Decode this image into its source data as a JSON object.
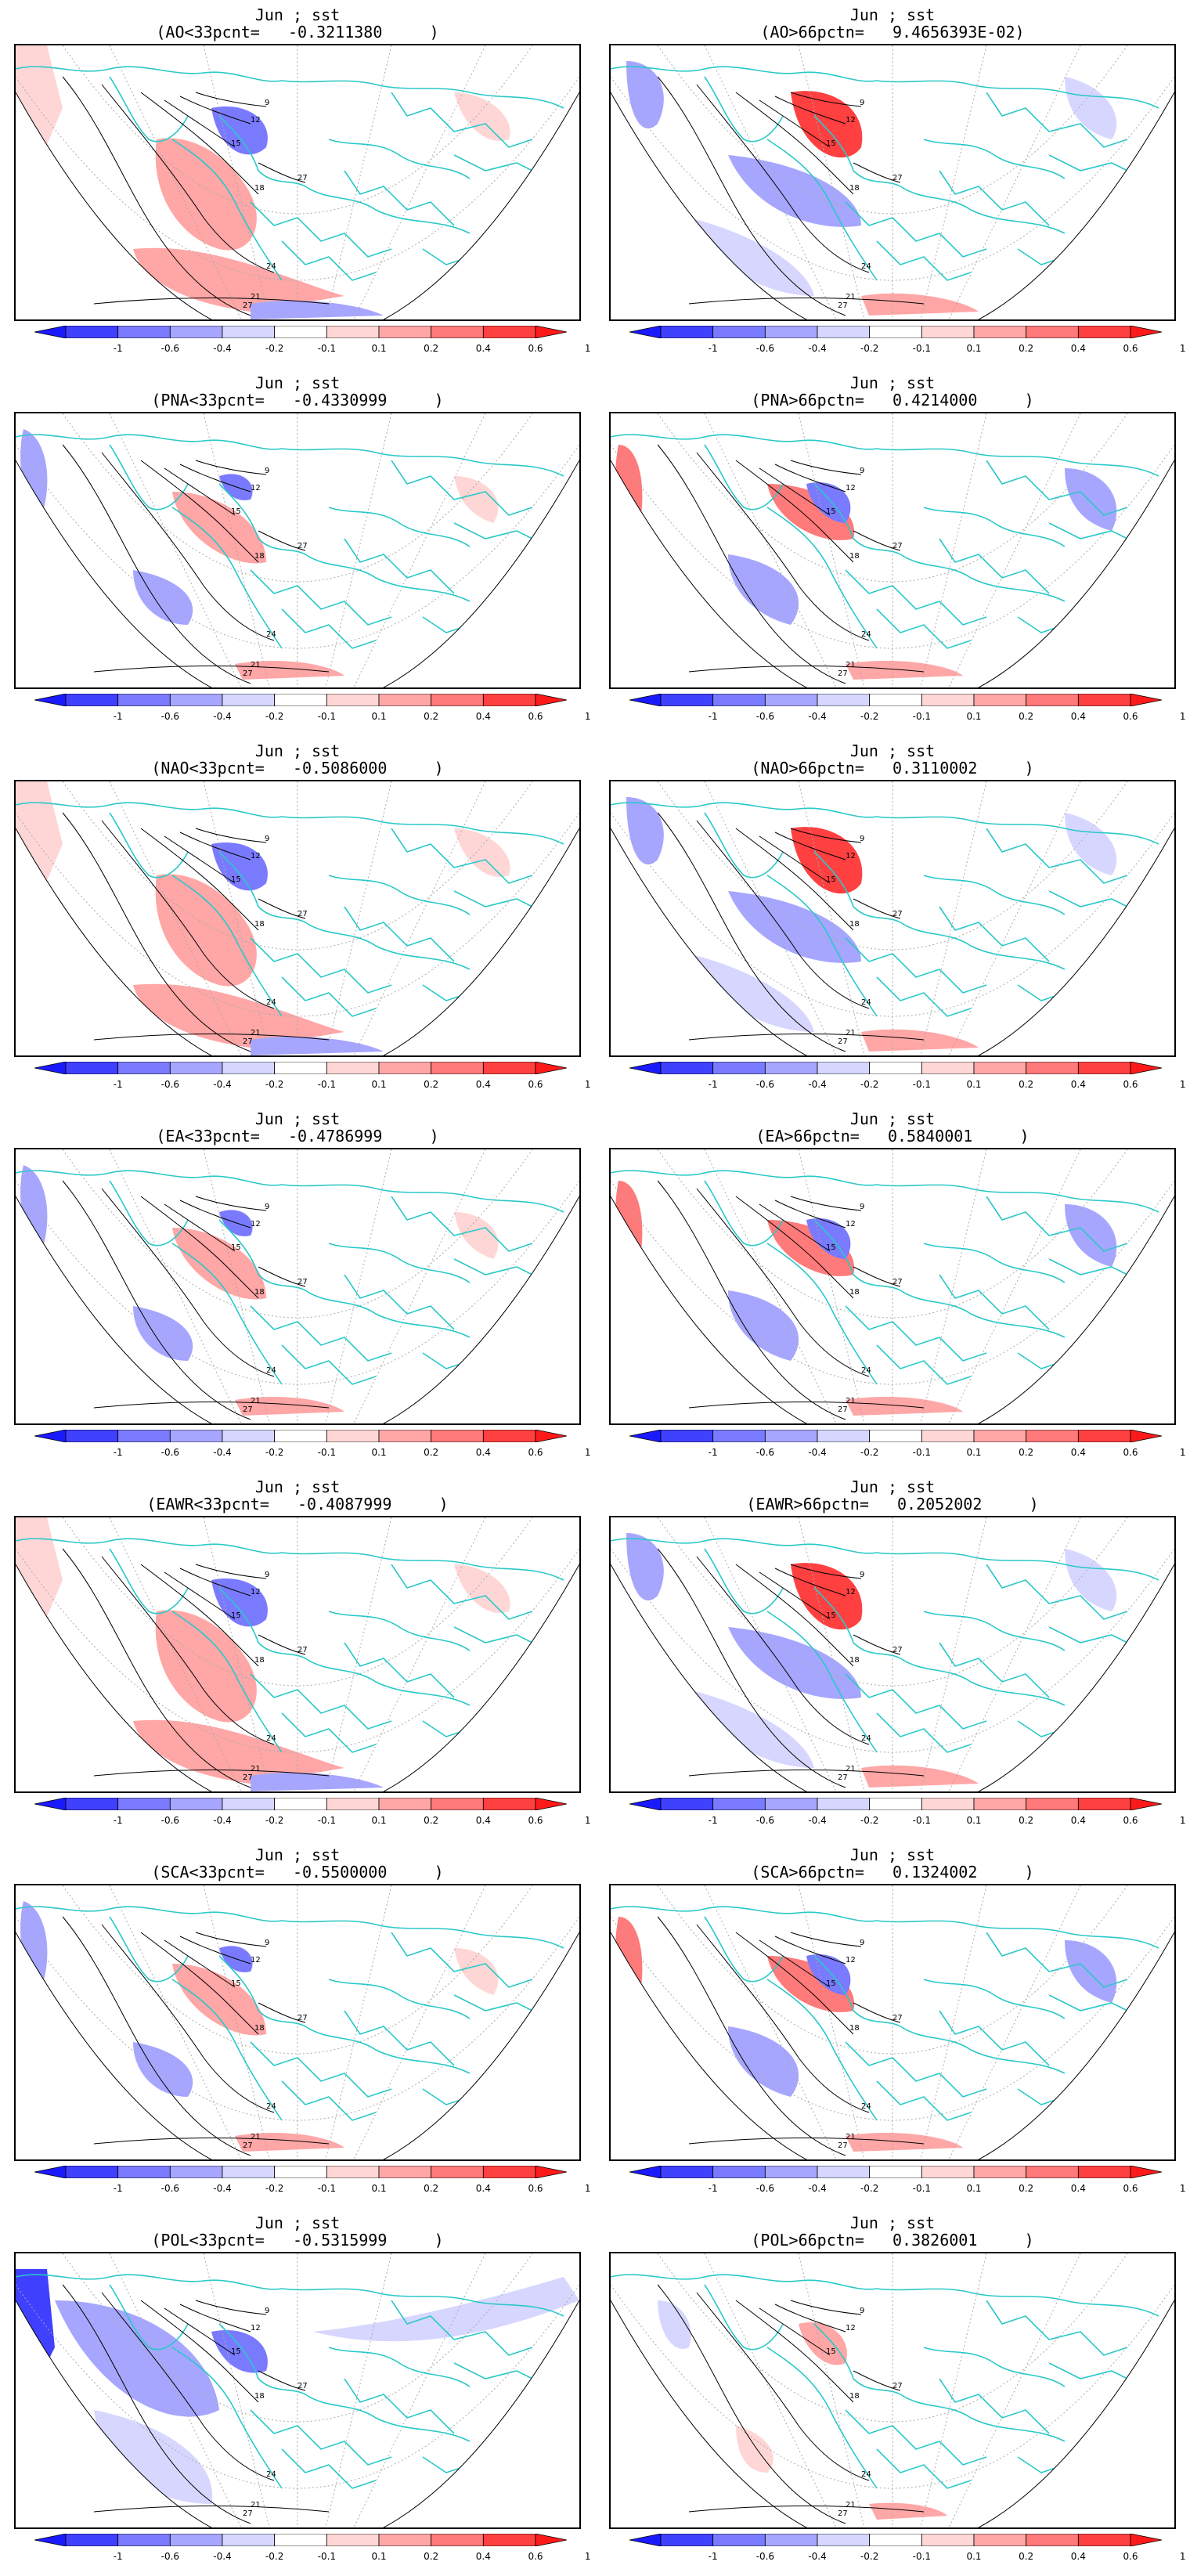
{
  "colorbar": {
    "ticks": [
      "-1",
      "-0.6",
      "-0.4",
      "-0.2",
      "-0.1",
      "0.1",
      "0.2",
      "0.4",
      "0.6",
      "1"
    ],
    "colors": [
      "#1a1aff",
      "#4040ff",
      "#7a7aff",
      "#a6a6ff",
      "#d6d6ff",
      "#ffffff",
      "#ffd6d6",
      "#ffa6a6",
      "#ff7a7a",
      "#ff4040",
      "#ff1a1a"
    ]
  },
  "contour_labels": [
    "27",
    "24",
    "18",
    "15",
    "12",
    "9",
    "21",
    "27"
  ],
  "colors": {
    "land_outline": "#2ac8c8",
    "contour": "#000000",
    "grid": "#aaaaaa"
  },
  "panels": [
    {
      "line1": "Jun ; sst",
      "line2": "(AO<33pcnt=   -0.3211380     )",
      "tone": "neg"
    },
    {
      "line1": "Jun ; sst",
      "line2": "(AO>66pctn=   9.4656393E-02)",
      "tone": "pos"
    },
    {
      "line1": "Jun ; sst",
      "line2": "(PNA<33pcnt=   -0.4330999     )",
      "tone": "mixneg"
    },
    {
      "line1": "Jun ; sst",
      "line2": "(PNA>66pctn=   0.4214000     )",
      "tone": "mixpos"
    },
    {
      "line1": "Jun ; sst",
      "line2": "(NAO<33pcnt=   -0.5086000     )",
      "tone": "neg"
    },
    {
      "line1": "Jun ; sst",
      "line2": "(NAO>66pctn=   0.3110002     )",
      "tone": "pos"
    },
    {
      "line1": "Jun ; sst",
      "line2": "(EA<33pcnt=   -0.4786999     )",
      "tone": "mixneg"
    },
    {
      "line1": "Jun ; sst",
      "line2": "(EA>66pctn=   0.5840001     )",
      "tone": "mixpos"
    },
    {
      "line1": "Jun ; sst",
      "line2": "(EAWR<33pcnt=   -0.4087999     )",
      "tone": "neg"
    },
    {
      "line1": "Jun ; sst",
      "line2": "(EAWR>66pctn=   0.2052002     )",
      "tone": "pos"
    },
    {
      "line1": "Jun ; sst",
      "line2": "(SCA<33pcnt=   -0.5500000     )",
      "tone": "mixneg"
    },
    {
      "line1": "Jun ; sst",
      "line2": "(SCA>66pctn=   0.1324002     )",
      "tone": "mixpos"
    },
    {
      "line1": "Jun ; sst",
      "line2": "(POL<33pcnt=   -0.5315999     )",
      "tone": "blue"
    },
    {
      "line1": "Jun ; sst",
      "line2": "(POL>66pctn=   0.3826001     )",
      "tone": "light"
    }
  ]
}
